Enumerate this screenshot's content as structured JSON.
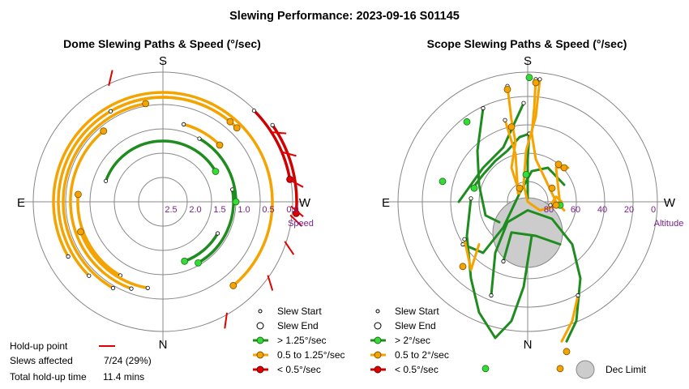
{
  "page_title": "Slewing Performance: 2023-09-16 S01145",
  "colors": {
    "fast": "#1e8c1e",
    "fast_fill": "#33dd33",
    "medium": "#f5a300",
    "medium_fill": "#f5a300",
    "slow": "#d00000",
    "slow_fill": "#e00000",
    "holdup": "#e00000",
    "grid": "#888888",
    "axis_label": "#7a1f8c",
    "dec_limit": "#cccccc"
  },
  "holdup_info": {
    "holdup_label": "Hold-up point",
    "slews_label": "Slews affected",
    "slews_value": "7/24 (29%)",
    "time_label": "Total hold-up time",
    "time_value": "11.4 mins"
  },
  "chart_data": [
    {
      "type": "polar-paths",
      "title": "Dome Slewing Paths & Speed (°/sec)",
      "compass": {
        "top": "S",
        "bottom": "N",
        "left": "E",
        "right": "W"
      },
      "radial_axis_label": "Speed",
      "radial_ticks": [
        "2.5",
        "2.0",
        "1.5",
        "1.0",
        "0.5",
        "0.0"
      ],
      "legend": [
        {
          "label": "Slew Start",
          "kind": "start"
        },
        {
          "label": "Slew End",
          "kind": "end"
        },
        {
          "label": "> 1.25°/sec",
          "kind": "fast"
        },
        {
          "label": "0.5 to 1.25°/sec",
          "kind": "medium"
        },
        {
          "label": "< 0.5°/sec",
          "kind": "slow"
        }
      ],
      "arcs": [
        {
          "speed": 1.75,
          "from": -70,
          "to": 60,
          "cls": "fast"
        },
        {
          "speed": 1.7,
          "from": 120,
          "to": 160,
          "cls": "fast"
        },
        {
          "speed": 1.55,
          "from": 80,
          "to": 150,
          "cls": "fast"
        },
        {
          "speed": 1.5,
          "from": 30,
          "to": 90,
          "cls": "fast"
        },
        {
          "speed": 1.25,
          "from": -150,
          "to": -85,
          "cls": "medium"
        },
        {
          "speed": 1.35,
          "from": 15,
          "to": 45,
          "cls": "medium"
        },
        {
          "speed": 1.2,
          "from": -170,
          "to": -110,
          "cls": "medium"
        },
        {
          "speed": 1.1,
          "from": -160,
          "to": -40,
          "cls": "medium"
        },
        {
          "speed": 0.95,
          "from": -150,
          "to": -10,
          "cls": "medium"
        },
        {
          "speed": 0.85,
          "from": -135,
          "to": 45,
          "cls": "medium"
        },
        {
          "speed": 0.75,
          "from": -120,
          "to": 140,
          "cls": "medium"
        },
        {
          "speed": 0.85,
          "from": -30,
          "to": 40,
          "cls": "medium"
        },
        {
          "speed": 0.35,
          "from": 45,
          "to": 80,
          "cls": "slow"
        },
        {
          "speed": 0.25,
          "from": 55,
          "to": 95,
          "cls": "slow"
        }
      ],
      "holdups": [
        -25,
        57,
        67,
        80,
        92,
        96,
        108,
        125,
        150
      ]
    },
    {
      "type": "polar-paths",
      "title": "Scope Slewing Paths & Speed (°/sec)",
      "compass": {
        "top": "S",
        "bottom": "N",
        "left": "E",
        "right": "W"
      },
      "radial_axis_label": "Altitude",
      "radial_ticks": [
        "80",
        "60",
        "40",
        "20",
        "0"
      ],
      "legend": [
        {
          "label": "Slew Start",
          "kind": "start"
        },
        {
          "label": "Slew End",
          "kind": "end"
        },
        {
          "label": "> 2°/sec",
          "kind": "fast"
        },
        {
          "label": "0.5 to 2°/sec",
          "kind": "medium"
        },
        {
          "label": "< 0.5°/sec",
          "kind": "slow"
        }
      ],
      "dec_limit_label": "Dec Limit",
      "paths": [
        {
          "cls": "fast",
          "pts": [
            [
              2,
              40
            ],
            [
              -10,
              38
            ],
            [
              -25,
              30
            ],
            [
              -40,
              24
            ],
            [
              -55,
              16
            ],
            [
              -68,
              8
            ]
          ]
        },
        {
          "cls": "fast",
          "pts": [
            [
              2,
              40
            ],
            [
              0,
              25
            ],
            [
              0,
              12
            ],
            [
              0,
              2
            ]
          ]
        },
        {
          "cls": "fast",
          "pts": [
            [
              -5,
              58
            ],
            [
              -30,
              32
            ],
            [
              -55,
              20
            ],
            [
              -70,
              10
            ],
            [
              -85,
              0
            ]
          ]
        },
        {
          "cls": "fast",
          "pts": [
            [
              -70,
              2
            ],
            [
              -75,
              -20
            ],
            [
              -70,
              -45
            ],
            [
              -60,
              -65
            ],
            [
              -40,
              -80
            ],
            [
              -20,
              -70
            ],
            [
              -5,
              -50
            ],
            [
              5,
              -20
            ]
          ]
        },
        {
          "cls": "fast",
          "pts": [
            [
              -80,
              -25
            ],
            [
              -55,
              -30
            ],
            [
              -30,
              -15
            ],
            [
              -10,
              5
            ],
            [
              5,
              18
            ],
            [
              25,
              20
            ],
            [
              45,
              10
            ]
          ]
        },
        {
          "cls": "fast",
          "pts": [
            [
              -45,
              -55
            ],
            [
              -40,
              -30
            ],
            [
              -25,
              -12
            ],
            [
              0,
              -5
            ],
            [
              30,
              -10
            ],
            [
              55,
              -25
            ],
            [
              65,
              -45
            ],
            [
              60,
              -70
            ],
            [
              48,
              -82
            ]
          ]
        },
        {
          "cls": "fast",
          "pts": [
            [
              -30,
              -35
            ],
            [
              -20,
              -18
            ],
            [
              10,
              -20
            ],
            [
              40,
              -25
            ]
          ]
        },
        {
          "cls": "fast",
          "pts": [
            [
              -55,
              55
            ],
            [
              -62,
              30
            ],
            [
              -60,
              10
            ],
            [
              -52,
              -8
            ],
            [
              -35,
              -12
            ]
          ]
        },
        {
          "cls": "medium",
          "pts": [
            [
              -25,
              68
            ],
            [
              -20,
              48
            ],
            [
              -15,
              35
            ],
            [
              -20,
              20
            ],
            [
              -10,
              5
            ]
          ]
        },
        {
          "cls": "medium",
          "pts": [
            [
              10,
              72
            ],
            [
              8,
              55
            ],
            [
              5,
              40
            ],
            [
              10,
              25
            ],
            [
              20,
              15
            ],
            [
              35,
              0
            ],
            [
              45,
              -5
            ]
          ]
        },
        {
          "cls": "medium",
          "pts": [
            [
              15,
              72
            ],
            [
              10,
              50
            ],
            [
              -2,
              30
            ],
            [
              -5,
              10
            ],
            [
              0,
              0
            ],
            [
              15,
              -5
            ],
            [
              40,
              -2
            ],
            [
              35,
              20
            ],
            [
              50,
              20
            ]
          ]
        },
        {
          "cls": "medium",
          "pts": [
            [
              -78,
              -22
            ],
            [
              -70,
              -40
            ],
            [
              -60,
              -25
            ]
          ]
        },
        {
          "cls": "medium",
          "pts": [
            [
              62,
              -55
            ],
            [
              55,
              -70
            ],
            [
              42,
              -82
            ]
          ]
        },
        {
          "cls": "medium",
          "pts": [
            [
              -28,
              48
            ],
            [
              -15,
              28
            ],
            [
              -12,
              5
            ]
          ]
        },
        {
          "cls": "medium",
          "pts": [
            [
              28,
              -2
            ],
            [
              35,
              3
            ],
            [
              42,
              0
            ]
          ]
        }
      ],
      "points": [
        {
          "cls": "fast",
          "x": 2,
          "y": 73,
          "big": true
        },
        {
          "cls": "fast",
          "x": -66,
          "y": 8,
          "big": true
        },
        {
          "cls": "fast",
          "x": -75,
          "y": 47,
          "big": true
        },
        {
          "cls": "fast",
          "x": -105,
          "y": 12,
          "big": true
        },
        {
          "cls": "fast",
          "x": -52,
          "y": -98,
          "big": true
        },
        {
          "cls": "fast",
          "x": -2,
          "y": 16,
          "big": true
        },
        {
          "cls": "fast",
          "x": 40,
          "y": -2,
          "big": true
        },
        {
          "cls": "medium",
          "x": -25,
          "y": 66,
          "big": true
        },
        {
          "cls": "medium",
          "x": 10,
          "y": 70,
          "big": true
        },
        {
          "cls": "medium",
          "x": -20,
          "y": 44,
          "big": true
        },
        {
          "cls": "medium",
          "x": -10,
          "y": 8,
          "big": true
        },
        {
          "cls": "medium",
          "x": 30,
          "y": 8,
          "big": true
        },
        {
          "cls": "medium",
          "x": 45,
          "y": 20,
          "big": true
        },
        {
          "cls": "medium",
          "x": 35,
          "y": -2,
          "big": true
        },
        {
          "cls": "medium",
          "x": -80,
          "y": -38,
          "big": true
        },
        {
          "cls": "medium",
          "x": 40,
          "y": -98,
          "big": true
        },
        {
          "cls": "medium",
          "x": 48,
          "y": -88,
          "big": true
        },
        {
          "cls": "medium",
          "x": 38,
          "y": 22,
          "big": true
        }
      ]
    }
  ]
}
